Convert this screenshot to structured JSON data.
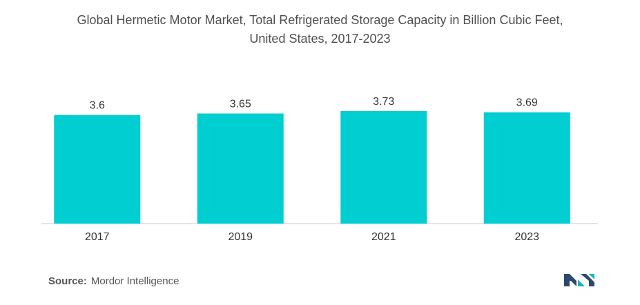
{
  "title_line1": "Global Hermetic Motor Market, Total Refrigerated Storage Capacity in Billion Cubic Feet,",
  "title_line2": "United States, 2017-2023",
  "source_label": "Source:",
  "source_value": "Mordor Intelligence",
  "colors": {
    "bar": "#00CED1",
    "axis": "#c8c8c8",
    "logo_dark": "#2b4a6b",
    "logo_teal": "#19b6b8"
  },
  "chart_data": {
    "type": "bar",
    "categories": [
      "2017",
      "2019",
      "2021",
      "2023"
    ],
    "values": [
      3.6,
      3.65,
      3.73,
      3.69
    ],
    "value_labels": [
      "3.6",
      "3.65",
      "3.73",
      "3.69"
    ],
    "title": "Global Hermetic Motor Market, Total Refrigerated Storage Capacity in Billion Cubic Feet, United States, 2017-2023",
    "xlabel": "",
    "ylabel": "",
    "grid": false,
    "legend": "none"
  }
}
